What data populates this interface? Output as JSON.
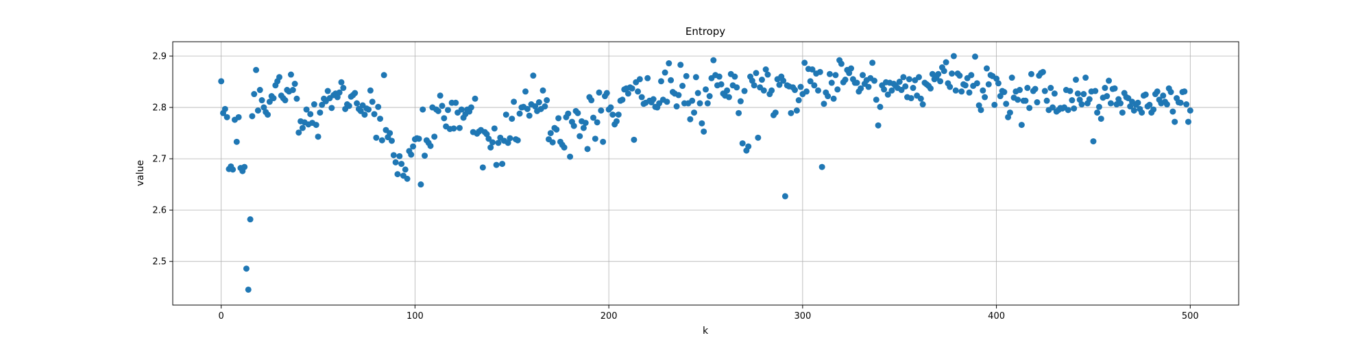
{
  "chart_data": {
    "type": "scatter",
    "title": "Entropy",
    "xlabel": "k",
    "ylabel": "value",
    "xlim": [
      -25,
      525
    ],
    "ylim": [
      2.415,
      2.928
    ],
    "xticks": [
      0,
      100,
      200,
      300,
      400,
      500
    ],
    "yticks": [
      2.5,
      2.6,
      2.7,
      2.8,
      2.9
    ],
    "grid": true,
    "color": "#1f77b4",
    "series": [
      {
        "x": [
          0,
          1,
          2,
          3,
          4,
          5,
          6,
          7,
          8,
          9,
          10,
          11,
          12,
          13,
          14,
          15,
          16,
          17,
          18,
          19,
          20,
          21,
          22,
          23,
          24,
          25,
          26,
          27,
          28,
          29,
          30,
          31,
          32,
          33,
          34,
          35,
          36,
          37,
          38,
          39,
          40,
          41,
          42,
          43,
          44,
          45,
          46,
          47,
          48,
          49,
          50,
          51,
          52,
          53,
          54,
          55,
          56,
          57,
          58,
          59,
          60,
          61,
          62,
          63,
          64,
          65,
          66,
          67,
          68,
          69,
          70,
          71,
          72,
          73,
          74,
          75,
          76,
          77,
          78,
          79,
          80,
          81,
          82,
          83,
          84,
          85,
          86,
          87,
          88,
          89,
          90,
          91,
          92,
          93,
          94,
          95,
          96,
          97,
          98,
          99,
          100,
          101,
          102,
          103,
          104,
          105,
          106,
          107,
          108,
          109,
          110,
          111,
          112,
          113,
          114,
          115,
          116,
          117,
          118,
          119,
          120,
          121,
          122,
          123,
          124,
          125,
          126,
          127,
          128,
          129,
          130,
          131,
          132,
          133,
          134,
          135,
          136,
          137,
          138,
          139,
          140,
          141,
          142,
          143,
          144,
          145,
          146,
          147,
          148,
          149,
          150,
          151,
          152,
          153,
          154,
          155,
          156,
          157,
          158,
          159,
          160,
          161,
          162,
          163,
          164,
          165,
          166,
          167,
          168,
          169,
          170,
          171,
          172,
          173,
          174,
          175,
          176,
          177,
          178,
          179,
          180,
          181,
          182,
          183,
          184,
          185,
          186,
          187,
          188,
          189,
          190,
          191,
          192,
          193,
          194,
          195,
          196,
          197,
          198,
          199,
          200,
          201,
          202,
          203,
          204,
          205,
          206,
          207,
          208,
          209,
          210,
          211,
          212,
          213,
          214,
          215,
          216,
          217,
          218,
          219,
          220,
          221,
          222,
          223,
          224,
          225,
          226,
          227,
          228,
          229,
          230,
          231,
          232,
          233,
          234,
          235,
          236,
          237,
          238,
          239,
          240,
          241,
          242,
          243,
          244,
          245,
          246,
          247,
          248,
          249,
          250,
          251,
          252,
          253,
          254,
          255,
          256,
          257,
          258,
          259,
          260,
          261,
          262,
          263,
          264,
          265,
          266,
          267,
          268,
          269,
          270,
          271,
          272,
          273,
          274,
          275,
          276,
          277,
          278,
          279,
          280,
          281,
          282,
          283,
          284,
          285,
          286,
          287,
          288,
          289,
          290,
          291,
          292,
          293,
          294,
          295,
          296,
          297,
          298,
          299,
          300,
          301,
          302,
          303,
          304,
          305,
          306,
          307,
          308,
          309,
          310,
          311,
          312,
          313,
          314,
          315,
          316,
          317,
          318,
          319,
          320,
          321,
          322,
          323,
          324,
          325,
          326,
          327,
          328,
          329,
          330,
          331,
          332,
          333,
          334,
          335,
          336,
          337,
          338,
          339,
          340,
          341,
          342,
          343,
          344,
          345,
          346,
          347,
          348,
          349,
          350,
          351,
          352,
          353,
          354,
          355,
          356,
          357,
          358,
          359,
          360,
          361,
          362,
          363,
          364,
          365,
          366,
          367,
          368,
          369,
          370,
          371,
          372,
          373,
          374,
          375,
          376,
          377,
          378,
          379,
          380,
          381,
          382,
          383,
          384,
          385,
          386,
          387,
          388,
          389,
          390,
          391,
          392,
          393,
          394,
          395,
          396,
          397,
          398,
          399,
          400,
          401,
          402,
          403,
          404,
          405,
          406,
          407,
          408,
          409,
          410,
          411,
          412,
          413,
          414,
          415,
          416,
          417,
          418,
          419,
          420,
          421,
          422,
          423,
          424,
          425,
          426,
          427,
          428,
          429,
          430,
          431,
          432,
          433,
          434,
          435,
          436,
          437,
          438,
          439,
          440,
          441,
          442,
          443,
          444,
          445,
          446,
          447,
          448,
          449,
          450,
          451,
          452,
          453,
          454,
          455,
          456,
          457,
          458,
          459,
          460,
          461,
          462,
          463,
          464,
          465,
          466,
          467,
          468,
          469,
          470,
          471,
          472,
          473,
          474,
          475,
          476,
          477,
          478,
          479,
          480,
          481,
          482,
          483,
          484,
          485,
          486,
          487,
          488,
          489,
          490,
          491,
          492,
          493,
          494,
          495,
          496,
          497,
          498,
          499,
          500
        ],
        "y": [
          2.851,
          2.789,
          2.797,
          2.781,
          2.68,
          2.685,
          2.679,
          2.776,
          2.733,
          2.781,
          2.682,
          2.676,
          2.684,
          2.486,
          2.445,
          2.582,
          2.783,
          2.826,
          2.873,
          2.794,
          2.834,
          2.814,
          2.8,
          2.791,
          2.786,
          2.811,
          2.822,
          2.818,
          2.843,
          2.851,
          2.859,
          2.823,
          2.818,
          2.814,
          2.834,
          2.831,
          2.864,
          2.834,
          2.846,
          2.817,
          2.751,
          2.773,
          2.76,
          2.771,
          2.796,
          2.767,
          2.787,
          2.77,
          2.806,
          2.766,
          2.743,
          2.79,
          2.805,
          2.817,
          2.812,
          2.832,
          2.818,
          2.799,
          2.824,
          2.827,
          2.82,
          2.829,
          2.849,
          2.838,
          2.797,
          2.806,
          2.803,
          2.821,
          2.824,
          2.828,
          2.808,
          2.797,
          2.793,
          2.804,
          2.786,
          2.798,
          2.796,
          2.833,
          2.811,
          2.787,
          2.741,
          2.801,
          2.778,
          2.736,
          2.863,
          2.756,
          2.742,
          2.75,
          2.735,
          2.707,
          2.693,
          2.67,
          2.705,
          2.69,
          2.667,
          2.679,
          2.661,
          2.715,
          2.708,
          2.724,
          2.738,
          2.74,
          2.739,
          2.65,
          2.796,
          2.706,
          2.736,
          2.731,
          2.725,
          2.8,
          2.743,
          2.796,
          2.793,
          2.823,
          2.803,
          2.779,
          2.763,
          2.795,
          2.758,
          2.809,
          2.759,
          2.809,
          2.79,
          2.76,
          2.796,
          2.78,
          2.787,
          2.796,
          2.792,
          2.8,
          2.752,
          2.817,
          2.749,
          2.753,
          2.756,
          2.683,
          2.752,
          2.748,
          2.739,
          2.722,
          2.732,
          2.759,
          2.688,
          2.731,
          2.741,
          2.69,
          2.735,
          2.786,
          2.731,
          2.74,
          2.778,
          2.811,
          2.738,
          2.736,
          2.788,
          2.8,
          2.801,
          2.831,
          2.797,
          2.784,
          2.806,
          2.862,
          2.802,
          2.793,
          2.81,
          2.797,
          2.833,
          2.802,
          2.814,
          2.738,
          2.75,
          2.732,
          2.76,
          2.757,
          2.779,
          2.733,
          2.727,
          2.722,
          2.781,
          2.788,
          2.704,
          2.772,
          2.764,
          2.793,
          2.789,
          2.744,
          2.773,
          2.76,
          2.77,
          2.719,
          2.82,
          2.814,
          2.78,
          2.739,
          2.771,
          2.829,
          2.794,
          2.733,
          2.822,
          2.828,
          2.796,
          2.8,
          2.786,
          2.767,
          2.773,
          2.786,
          2.813,
          2.815,
          2.835,
          2.837,
          2.827,
          2.839,
          2.837,
          2.737,
          2.849,
          2.831,
          2.855,
          2.82,
          2.807,
          2.809,
          2.857,
          2.813,
          2.81,
          2.816,
          2.801,
          2.8,
          2.808,
          2.851,
          2.815,
          2.868,
          2.811,
          2.886,
          2.853,
          2.83,
          2.827,
          2.802,
          2.824,
          2.883,
          2.842,
          2.808,
          2.861,
          2.808,
          2.777,
          2.813,
          2.79,
          2.859,
          2.828,
          2.808,
          2.769,
          2.753,
          2.835,
          2.808,
          2.822,
          2.857,
          2.892,
          2.863,
          2.843,
          2.86,
          2.845,
          2.827,
          2.823,
          2.833,
          2.82,
          2.865,
          2.843,
          2.86,
          2.839,
          2.789,
          2.812,
          2.73,
          2.832,
          2.716,
          2.724,
          2.86,
          2.852,
          2.843,
          2.867,
          2.741,
          2.839,
          2.854,
          2.833,
          2.874,
          2.864,
          2.826,
          2.833,
          2.785,
          2.79,
          2.855,
          2.844,
          2.86,
          2.852,
          2.627,
          2.843,
          2.841,
          2.789,
          2.839,
          2.834,
          2.794,
          2.814,
          2.84,
          2.826,
          2.887,
          2.831,
          2.875,
          2.851,
          2.874,
          2.843,
          2.866,
          2.833,
          2.869,
          2.684,
          2.807,
          2.829,
          2.822,
          2.865,
          2.848,
          2.817,
          2.863,
          2.835,
          2.892,
          2.885,
          2.849,
          2.854,
          2.873,
          2.867,
          2.876,
          2.855,
          2.848,
          2.848,
          2.831,
          2.837,
          2.863,
          2.846,
          2.853,
          2.84,
          2.857,
          2.887,
          2.852,
          2.815,
          2.765,
          2.801,
          2.843,
          2.835,
          2.849,
          2.825,
          2.848,
          2.833,
          2.846,
          2.842,
          2.838,
          2.85,
          2.834,
          2.859,
          2.841,
          2.82,
          2.855,
          2.818,
          2.838,
          2.853,
          2.823,
          2.859,
          2.817,
          2.806,
          2.848,
          2.845,
          2.842,
          2.837,
          2.865,
          2.855,
          2.858,
          2.865,
          2.851,
          2.878,
          2.871,
          2.888,
          2.847,
          2.84,
          2.866,
          2.9,
          2.833,
          2.866,
          2.862,
          2.831,
          2.845,
          2.843,
          2.857,
          2.829,
          2.863,
          2.842,
          2.899,
          2.847,
          2.804,
          2.795,
          2.833,
          2.82,
          2.876,
          2.845,
          2.863,
          2.861,
          2.805,
          2.856,
          2.847,
          2.822,
          2.832,
          2.83,
          2.807,
          2.781,
          2.79,
          2.858,
          2.819,
          2.831,
          2.815,
          2.834,
          2.766,
          2.813,
          2.813,
          2.838,
          2.799,
          2.865,
          2.832,
          2.836,
          2.81,
          2.862,
          2.867,
          2.869,
          2.832,
          2.813,
          2.795,
          2.838,
          2.8,
          2.827,
          2.792,
          2.795,
          2.799,
          2.798,
          2.8,
          2.834,
          2.795,
          2.832,
          2.814,
          2.798,
          2.854,
          2.827,
          2.815,
          2.806,
          2.826,
          2.858,
          2.808,
          2.816,
          2.831,
          2.734,
          2.832,
          2.79,
          2.801,
          2.778,
          2.819,
          2.838,
          2.822,
          2.852,
          2.808,
          2.836,
          2.837,
          2.806,
          2.816,
          2.808,
          2.79,
          2.828,
          2.82,
          2.818,
          2.802,
          2.811,
          2.794,
          2.805,
          2.809,
          2.797,
          2.79,
          2.823,
          2.825,
          2.802,
          2.805,
          2.79,
          2.796,
          2.826,
          2.831,
          2.815,
          2.808,
          2.823,
          2.811,
          2.806,
          2.837,
          2.83,
          2.792,
          2.772,
          2.818,
          2.81,
          2.809,
          2.83,
          2.831,
          2.806,
          2.772,
          2.794
        ]
      }
    ]
  }
}
